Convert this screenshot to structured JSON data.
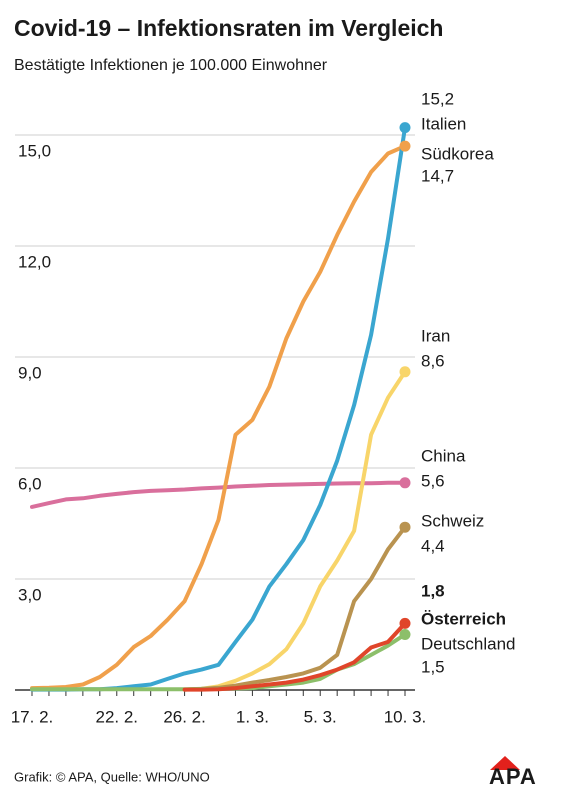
{
  "chart_data": {
    "type": "line",
    "title": "Covid-19 – Infektionsraten im Vergleich",
    "subtitle": "Bestätigte Infektionen je 100.000 Einwohner",
    "source": "Grafik: © APA, Quelle: WHO/UNO",
    "logo": "APA",
    "categories": [
      "17. 2.",
      null,
      null,
      null,
      null,
      "22. 2.",
      null,
      null,
      null,
      "26. 2.",
      null,
      null,
      null,
      "1. 3.",
      null,
      null,
      null,
      "5. 3.",
      null,
      null,
      null,
      null,
      "10. 3."
    ],
    "ylim": [
      0,
      16
    ],
    "yticks": [
      {
        "value": 3,
        "label": "3,0"
      },
      {
        "value": 6,
        "label": "6,0"
      },
      {
        "value": 9,
        "label": "9,0"
      },
      {
        "value": 12,
        "label": "12,0"
      },
      {
        "value": 15,
        "label": "15,0"
      }
    ],
    "grid": true,
    "series": [
      {
        "name": "Italien",
        "color": "#3aa6d0",
        "values": [
          0.01,
          0.01,
          0.01,
          0.02,
          0.02,
          0.05,
          0.1,
          0.15,
          0.3,
          0.45,
          0.55,
          0.68,
          1.3,
          1.9,
          2.8,
          3.4,
          4.05,
          5.0,
          6.2,
          7.7,
          9.6,
          12.2,
          15.2
        ],
        "value_labels": [
          null,
          null,
          null,
          null,
          null,
          null,
          null,
          null,
          null,
          null,
          null,
          null,
          null,
          null,
          null,
          null,
          null,
          null,
          null,
          null,
          null,
          null,
          "15,2"
        ]
      },
      {
        "name": "Südkorea",
        "color": "#f0a04b",
        "values": [
          0.05,
          0.06,
          0.08,
          0.15,
          0.35,
          0.68,
          1.16,
          1.46,
          1.9,
          2.4,
          3.4,
          4.6,
          6.9,
          7.3,
          8.2,
          9.5,
          10.5,
          11.3,
          12.3,
          13.2,
          14.0,
          14.5,
          14.7
        ],
        "value_labels": [
          null,
          null,
          null,
          null,
          null,
          null,
          null,
          null,
          null,
          null,
          null,
          null,
          null,
          null,
          null,
          null,
          null,
          null,
          null,
          null,
          null,
          null,
          "14,7"
        ]
      },
      {
        "name": "Iran",
        "color": "#f8d56a",
        "values": [
          null,
          null,
          null,
          null,
          null,
          null,
          null,
          null,
          null,
          0.01,
          0.03,
          0.1,
          0.25,
          0.45,
          0.7,
          1.1,
          1.8,
          2.8,
          3.5,
          4.3,
          6.9,
          7.9,
          8.6
        ],
        "value_labels": [
          null,
          null,
          null,
          null,
          null,
          null,
          null,
          null,
          null,
          null,
          null,
          null,
          null,
          null,
          null,
          null,
          null,
          null,
          null,
          null,
          null,
          null,
          "8,6"
        ]
      },
      {
        "name": "China",
        "color": "#d96f9c",
        "values": [
          4.95,
          5.05,
          5.15,
          5.18,
          5.25,
          5.3,
          5.35,
          5.38,
          5.4,
          5.42,
          5.45,
          5.47,
          5.5,
          5.52,
          5.54,
          5.55,
          5.56,
          5.57,
          5.58,
          5.59,
          5.59,
          5.6,
          5.6
        ],
        "value_labels": [
          null,
          null,
          null,
          null,
          null,
          null,
          null,
          null,
          null,
          null,
          null,
          null,
          null,
          null,
          null,
          null,
          null,
          null,
          null,
          null,
          null,
          null,
          "5,6"
        ]
      },
      {
        "name": "Schweiz",
        "color": "#b99350",
        "values": [
          null,
          null,
          null,
          null,
          null,
          null,
          null,
          null,
          null,
          0.01,
          0.03,
          0.06,
          0.12,
          0.2,
          0.27,
          0.35,
          0.45,
          0.6,
          0.95,
          2.4,
          3.0,
          3.8,
          4.4
        ],
        "value_labels": [
          null,
          null,
          null,
          null,
          null,
          null,
          null,
          null,
          null,
          null,
          null,
          null,
          null,
          null,
          null,
          null,
          null,
          null,
          null,
          null,
          null,
          null,
          "4,4"
        ]
      },
      {
        "name": "Österreich",
        "color": "#e0452a",
        "values": [
          null,
          null,
          null,
          null,
          null,
          null,
          null,
          null,
          null,
          0.01,
          0.01,
          0.02,
          0.05,
          0.1,
          0.15,
          0.2,
          0.28,
          0.4,
          0.55,
          0.75,
          1.15,
          1.3,
          1.8
        ],
        "value_labels": [
          null,
          null,
          null,
          null,
          null,
          null,
          null,
          null,
          null,
          null,
          null,
          null,
          null,
          null,
          null,
          null,
          null,
          null,
          null,
          null,
          null,
          null,
          "1,8"
        ]
      },
      {
        "name": "Deutschland",
        "color": "#8cbf6a",
        "values": [
          0.02,
          0.02,
          0.02,
          0.02,
          0.02,
          0.02,
          0.02,
          0.02,
          0.02,
          0.02,
          0.03,
          0.03,
          0.04,
          0.05,
          0.1,
          0.15,
          0.2,
          0.3,
          0.55,
          0.7,
          0.95,
          1.2,
          1.5
        ],
        "value_labels": [
          null,
          null,
          null,
          null,
          null,
          null,
          null,
          null,
          null,
          null,
          null,
          null,
          null,
          null,
          null,
          null,
          null,
          null,
          null,
          null,
          null,
          null,
          "1,5"
        ]
      }
    ]
  }
}
